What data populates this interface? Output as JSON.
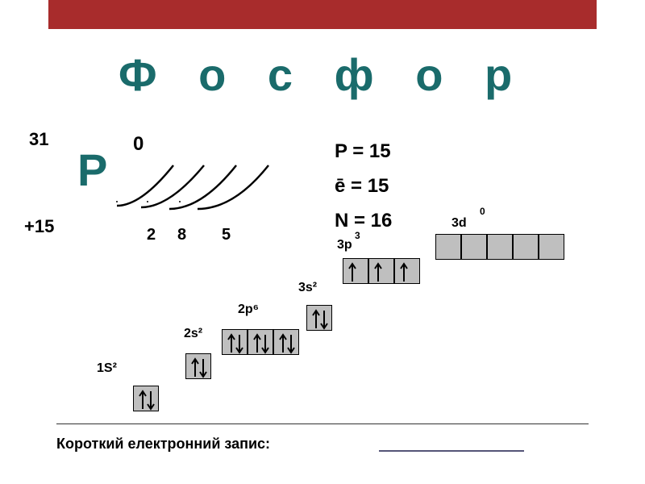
{
  "title": "Ф о с ф о р",
  "element": {
    "mass": "31",
    "symbol": "P",
    "charge": "+15",
    "zero": "0"
  },
  "shells": {
    "n1": "2",
    "n2": "8",
    "n3": "5"
  },
  "props": {
    "p": "P = 15",
    "e": "ē =  15",
    "n": "N = 16"
  },
  "orbitals": {
    "s1": {
      "label": "1S²",
      "boxes": 1,
      "fill": [
        "ud"
      ]
    },
    "s2": {
      "label": "2s²",
      "boxes": 1,
      "fill": [
        "ud"
      ]
    },
    "p2": {
      "label": "2p⁶",
      "boxes": 3,
      "fill": [
        "ud",
        "ud",
        "ud"
      ]
    },
    "s3": {
      "label": "3s²",
      "boxes": 1,
      "fill": [
        "ud"
      ]
    },
    "p3": {
      "label": "3p",
      "sup": "3",
      "boxes": 3,
      "fill": [
        "u",
        "u",
        "u"
      ]
    },
    "d3": {
      "label": "3d",
      "sup": "0",
      "boxes": 5,
      "fill": [
        "",
        "",
        "",
        "",
        ""
      ]
    }
  },
  "footer": "Короткий електронний запис:",
  "colors": {
    "accent": "#1a6b6b",
    "bar": "#a82c2c",
    "box": "#bfbfbf",
    "text": "#000000"
  }
}
